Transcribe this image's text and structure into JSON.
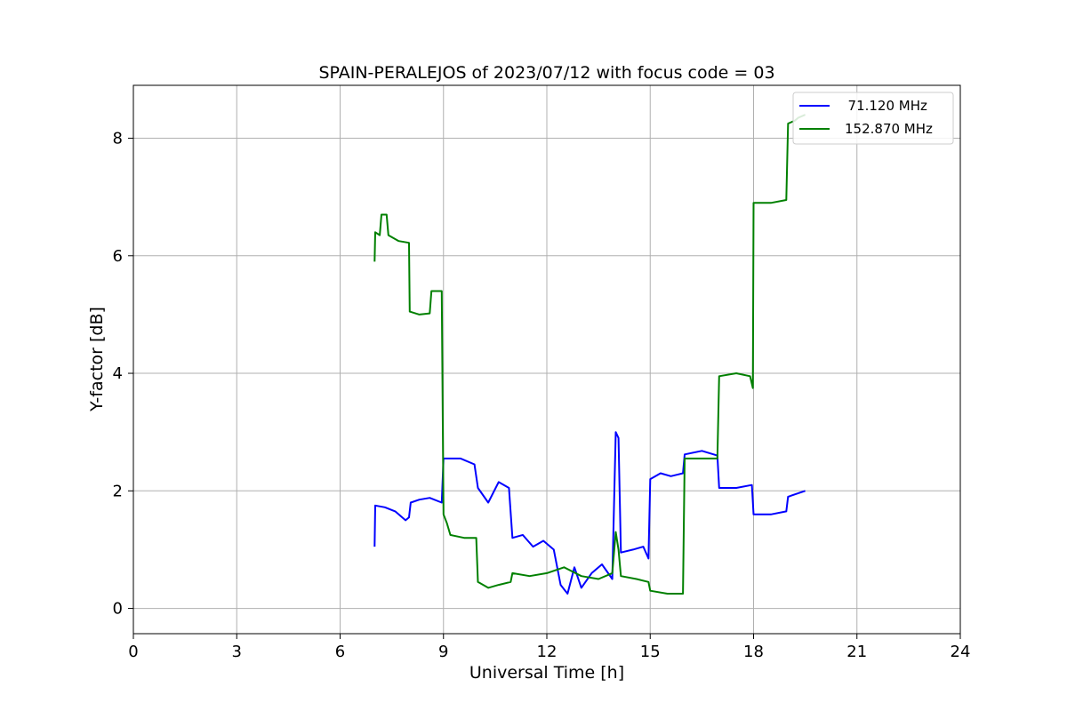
{
  "chart_data": {
    "type": "line",
    "title": "SPAIN-PERALEJOS of 2023/07/12 with focus code = 03",
    "xlabel": "Universal Time [h]",
    "ylabel": "Y-factor [dB]",
    "xlim": [
      0,
      24
    ],
    "ylim": [
      -0.43,
      8.9
    ],
    "x_ticks": [
      0,
      3,
      6,
      9,
      12,
      15,
      18,
      21,
      24
    ],
    "y_ticks": [
      0,
      2,
      4,
      6,
      8
    ],
    "grid": true,
    "legend_position": "top-right",
    "series": [
      {
        "name": "  71.120 MHz",
        "color": "#0000ff",
        "points": [
          [
            7.0,
            1.05
          ],
          [
            7.02,
            1.75
          ],
          [
            7.3,
            1.72
          ],
          [
            7.6,
            1.65
          ],
          [
            7.9,
            1.5
          ],
          [
            8.0,
            1.55
          ],
          [
            8.05,
            1.8
          ],
          [
            8.3,
            1.85
          ],
          [
            8.6,
            1.88
          ],
          [
            8.95,
            1.8
          ],
          [
            9.0,
            2.55
          ],
          [
            9.5,
            2.55
          ],
          [
            9.9,
            2.45
          ],
          [
            10.0,
            2.05
          ],
          [
            10.3,
            1.8
          ],
          [
            10.6,
            2.15
          ],
          [
            10.9,
            2.05
          ],
          [
            11.0,
            1.2
          ],
          [
            11.3,
            1.25
          ],
          [
            11.6,
            1.05
          ],
          [
            11.9,
            1.15
          ],
          [
            12.2,
            1.0
          ],
          [
            12.4,
            0.4
          ],
          [
            12.6,
            0.25
          ],
          [
            12.8,
            0.7
          ],
          [
            13.0,
            0.35
          ],
          [
            13.3,
            0.6
          ],
          [
            13.6,
            0.75
          ],
          [
            13.9,
            0.5
          ],
          [
            14.0,
            3.0
          ],
          [
            14.08,
            2.9
          ],
          [
            14.15,
            0.95
          ],
          [
            14.5,
            1.0
          ],
          [
            14.8,
            1.05
          ],
          [
            14.95,
            0.85
          ],
          [
            15.0,
            2.2
          ],
          [
            15.3,
            2.3
          ],
          [
            15.6,
            2.25
          ],
          [
            15.95,
            2.3
          ],
          [
            16.0,
            2.62
          ],
          [
            16.5,
            2.68
          ],
          [
            16.95,
            2.6
          ],
          [
            17.0,
            2.05
          ],
          [
            17.5,
            2.05
          ],
          [
            17.95,
            2.1
          ],
          [
            18.0,
            1.6
          ],
          [
            18.5,
            1.6
          ],
          [
            18.95,
            1.65
          ],
          [
            19.0,
            1.9
          ],
          [
            19.5,
            2.0
          ]
        ]
      },
      {
        "name": "152.870 MHz",
        "color": "#008000",
        "points": [
          [
            7.0,
            5.9
          ],
          [
            7.02,
            6.4
          ],
          [
            7.15,
            6.35
          ],
          [
            7.2,
            6.7
          ],
          [
            7.35,
            6.7
          ],
          [
            7.4,
            6.35
          ],
          [
            7.7,
            6.25
          ],
          [
            8.0,
            6.22
          ],
          [
            8.02,
            5.05
          ],
          [
            8.3,
            5.0
          ],
          [
            8.6,
            5.02
          ],
          [
            8.65,
            5.4
          ],
          [
            8.95,
            5.4
          ],
          [
            9.0,
            1.6
          ],
          [
            9.1,
            1.45
          ],
          [
            9.2,
            1.25
          ],
          [
            9.6,
            1.2
          ],
          [
            9.95,
            1.2
          ],
          [
            10.0,
            0.45
          ],
          [
            10.3,
            0.35
          ],
          [
            10.6,
            0.4
          ],
          [
            10.95,
            0.45
          ],
          [
            11.0,
            0.6
          ],
          [
            11.5,
            0.55
          ],
          [
            12.0,
            0.6
          ],
          [
            12.5,
            0.7
          ],
          [
            13.0,
            0.55
          ],
          [
            13.5,
            0.5
          ],
          [
            13.9,
            0.6
          ],
          [
            14.0,
            1.3
          ],
          [
            14.08,
            1.0
          ],
          [
            14.15,
            0.55
          ],
          [
            14.6,
            0.5
          ],
          [
            14.95,
            0.45
          ],
          [
            15.0,
            0.3
          ],
          [
            15.5,
            0.25
          ],
          [
            15.95,
            0.25
          ],
          [
            16.0,
            2.55
          ],
          [
            16.5,
            2.55
          ],
          [
            16.95,
            2.55
          ],
          [
            17.0,
            3.95
          ],
          [
            17.5,
            4.0
          ],
          [
            17.9,
            3.95
          ],
          [
            17.98,
            3.75
          ],
          [
            18.0,
            6.9
          ],
          [
            18.5,
            6.9
          ],
          [
            18.95,
            6.95
          ],
          [
            19.0,
            8.25
          ],
          [
            19.2,
            8.3
          ],
          [
            19.3,
            8.35
          ],
          [
            19.5,
            8.4
          ]
        ]
      }
    ]
  }
}
